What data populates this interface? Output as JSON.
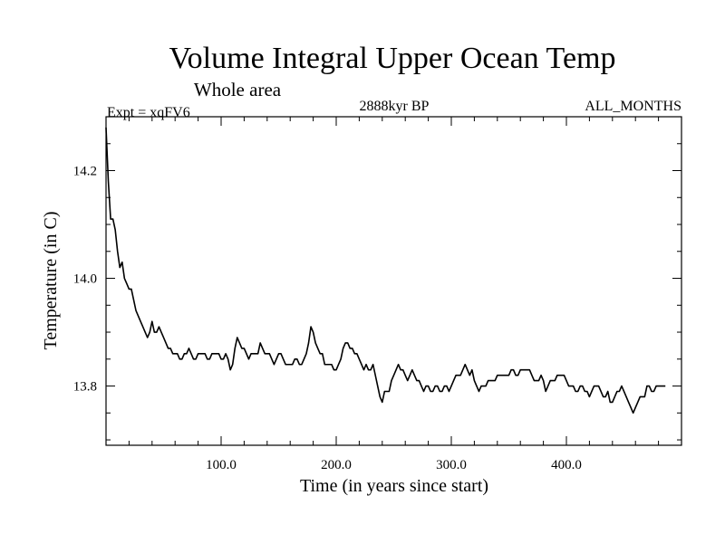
{
  "chart_data": {
    "type": "line",
    "title": "Volume Integral Upper Ocean Temp",
    "subtitle": "Whole area",
    "info_left": "Expt = xqFV6",
    "info_center": "2888kyr BP",
    "info_right": "ALL_MONTHS",
    "xlabel": "Time (in years since start)",
    "ylabel": "Temperature (in C)",
    "xlim": [
      0,
      500
    ],
    "ylim": [
      13.69,
      14.3
    ],
    "x_tick_labels": [
      "100.0",
      "200.0",
      "300.0",
      "400.0"
    ],
    "x_tick_values": [
      100,
      200,
      300,
      400
    ],
    "y_tick_labels": [
      "13.8",
      "14.0",
      "14.2"
    ],
    "y_tick_values": [
      13.8,
      14.0,
      14.2
    ],
    "grid": false,
    "series": [
      {
        "name": "Volume Integral Upper Ocean Temp",
        "x_start": 0,
        "x_step": 2,
        "values": [
          14.28,
          14.18,
          14.11,
          14.11,
          14.09,
          14.05,
          14.02,
          14.03,
          14.0,
          13.99,
          13.98,
          13.98,
          13.96,
          13.94,
          13.93,
          13.92,
          13.91,
          13.9,
          13.89,
          13.9,
          13.92,
          13.9,
          13.9,
          13.91,
          13.9,
          13.89,
          13.88,
          13.87,
          13.87,
          13.86,
          13.86,
          13.86,
          13.85,
          13.85,
          13.86,
          13.86,
          13.87,
          13.86,
          13.85,
          13.85,
          13.86,
          13.86,
          13.86,
          13.86,
          13.85,
          13.85,
          13.86,
          13.86,
          13.86,
          13.86,
          13.85,
          13.85,
          13.86,
          13.85,
          13.83,
          13.84,
          13.87,
          13.89,
          13.88,
          13.87,
          13.87,
          13.86,
          13.85,
          13.86,
          13.86,
          13.86,
          13.86,
          13.88,
          13.87,
          13.86,
          13.86,
          13.86,
          13.85,
          13.84,
          13.85,
          13.86,
          13.86,
          13.85,
          13.84,
          13.84,
          13.84,
          13.84,
          13.85,
          13.85,
          13.84,
          13.84,
          13.85,
          13.86,
          13.88,
          13.91,
          13.9,
          13.88,
          13.87,
          13.86,
          13.86,
          13.84,
          13.84,
          13.84,
          13.84,
          13.83,
          13.83,
          13.84,
          13.85,
          13.87,
          13.88,
          13.88,
          13.87,
          13.87,
          13.86,
          13.86,
          13.85,
          13.84,
          13.83,
          13.84,
          13.83,
          13.83,
          13.84,
          13.82,
          13.8,
          13.78,
          13.77,
          13.79,
          13.79,
          13.79,
          13.81,
          13.82,
          13.83,
          13.84,
          13.83,
          13.83,
          13.82,
          13.81,
          13.82,
          13.83,
          13.82,
          13.81,
          13.81,
          13.8,
          13.79,
          13.8,
          13.8,
          13.79,
          13.79,
          13.8,
          13.8,
          13.79,
          13.79,
          13.8,
          13.8,
          13.79,
          13.8,
          13.81,
          13.82,
          13.82,
          13.82,
          13.83,
          13.84,
          13.83,
          13.82,
          13.83,
          13.81,
          13.8,
          13.79,
          13.8,
          13.8,
          13.8,
          13.81,
          13.81,
          13.81,
          13.81,
          13.82,
          13.82,
          13.82,
          13.82,
          13.82,
          13.82,
          13.83,
          13.83,
          13.82,
          13.82,
          13.83,
          13.83,
          13.83,
          13.83,
          13.83,
          13.82,
          13.81,
          13.81,
          13.81,
          13.82,
          13.81,
          13.79,
          13.8,
          13.81,
          13.81,
          13.81,
          13.82,
          13.82,
          13.82,
          13.82,
          13.81,
          13.8,
          13.8,
          13.8,
          13.79,
          13.79,
          13.8,
          13.8,
          13.79,
          13.79,
          13.78,
          13.79,
          13.8,
          13.8,
          13.8,
          13.79,
          13.78,
          13.78,
          13.79,
          13.77,
          13.77,
          13.78,
          13.79,
          13.79,
          13.8,
          13.79,
          13.78,
          13.77,
          13.76,
          13.75,
          13.76,
          13.77,
          13.78,
          13.78,
          13.78,
          13.8,
          13.8,
          13.79,
          13.79,
          13.8,
          13.8,
          13.8,
          13.8,
          13.8
        ]
      }
    ]
  }
}
